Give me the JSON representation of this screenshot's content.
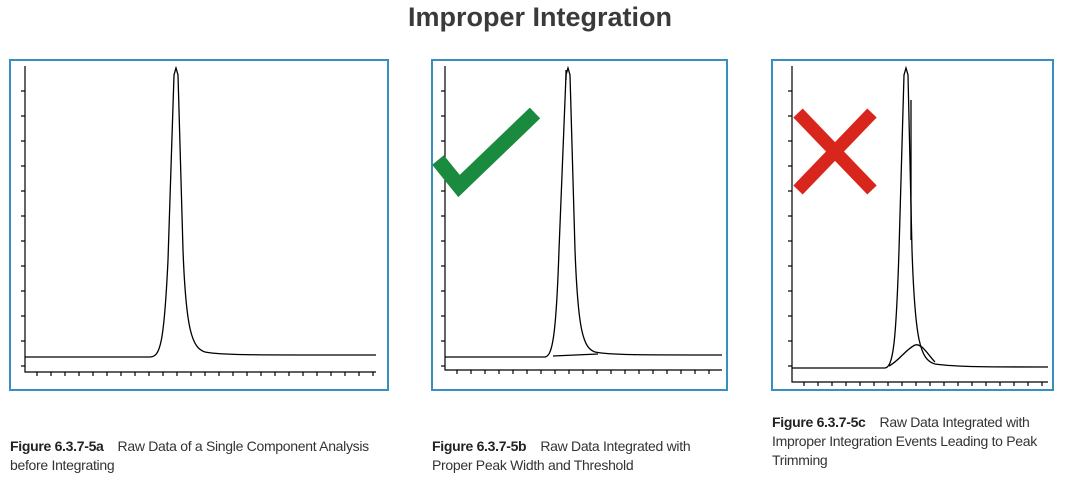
{
  "header": {
    "title": "Improper Integration"
  },
  "figures": [
    {
      "label": "Figure 6.3.7-5a",
      "caption": "Raw Data of a Single Component Analysis before Integrating"
    },
    {
      "label": "Figure 6.3.7-5b",
      "caption": "Raw Data Integrated with Proper Peak Width and Threshold"
    },
    {
      "label": "Figure 6.3.7-5c",
      "caption": "Raw Data Integrated with Improper Integration Events Leading to Peak Trimming"
    }
  ]
}
